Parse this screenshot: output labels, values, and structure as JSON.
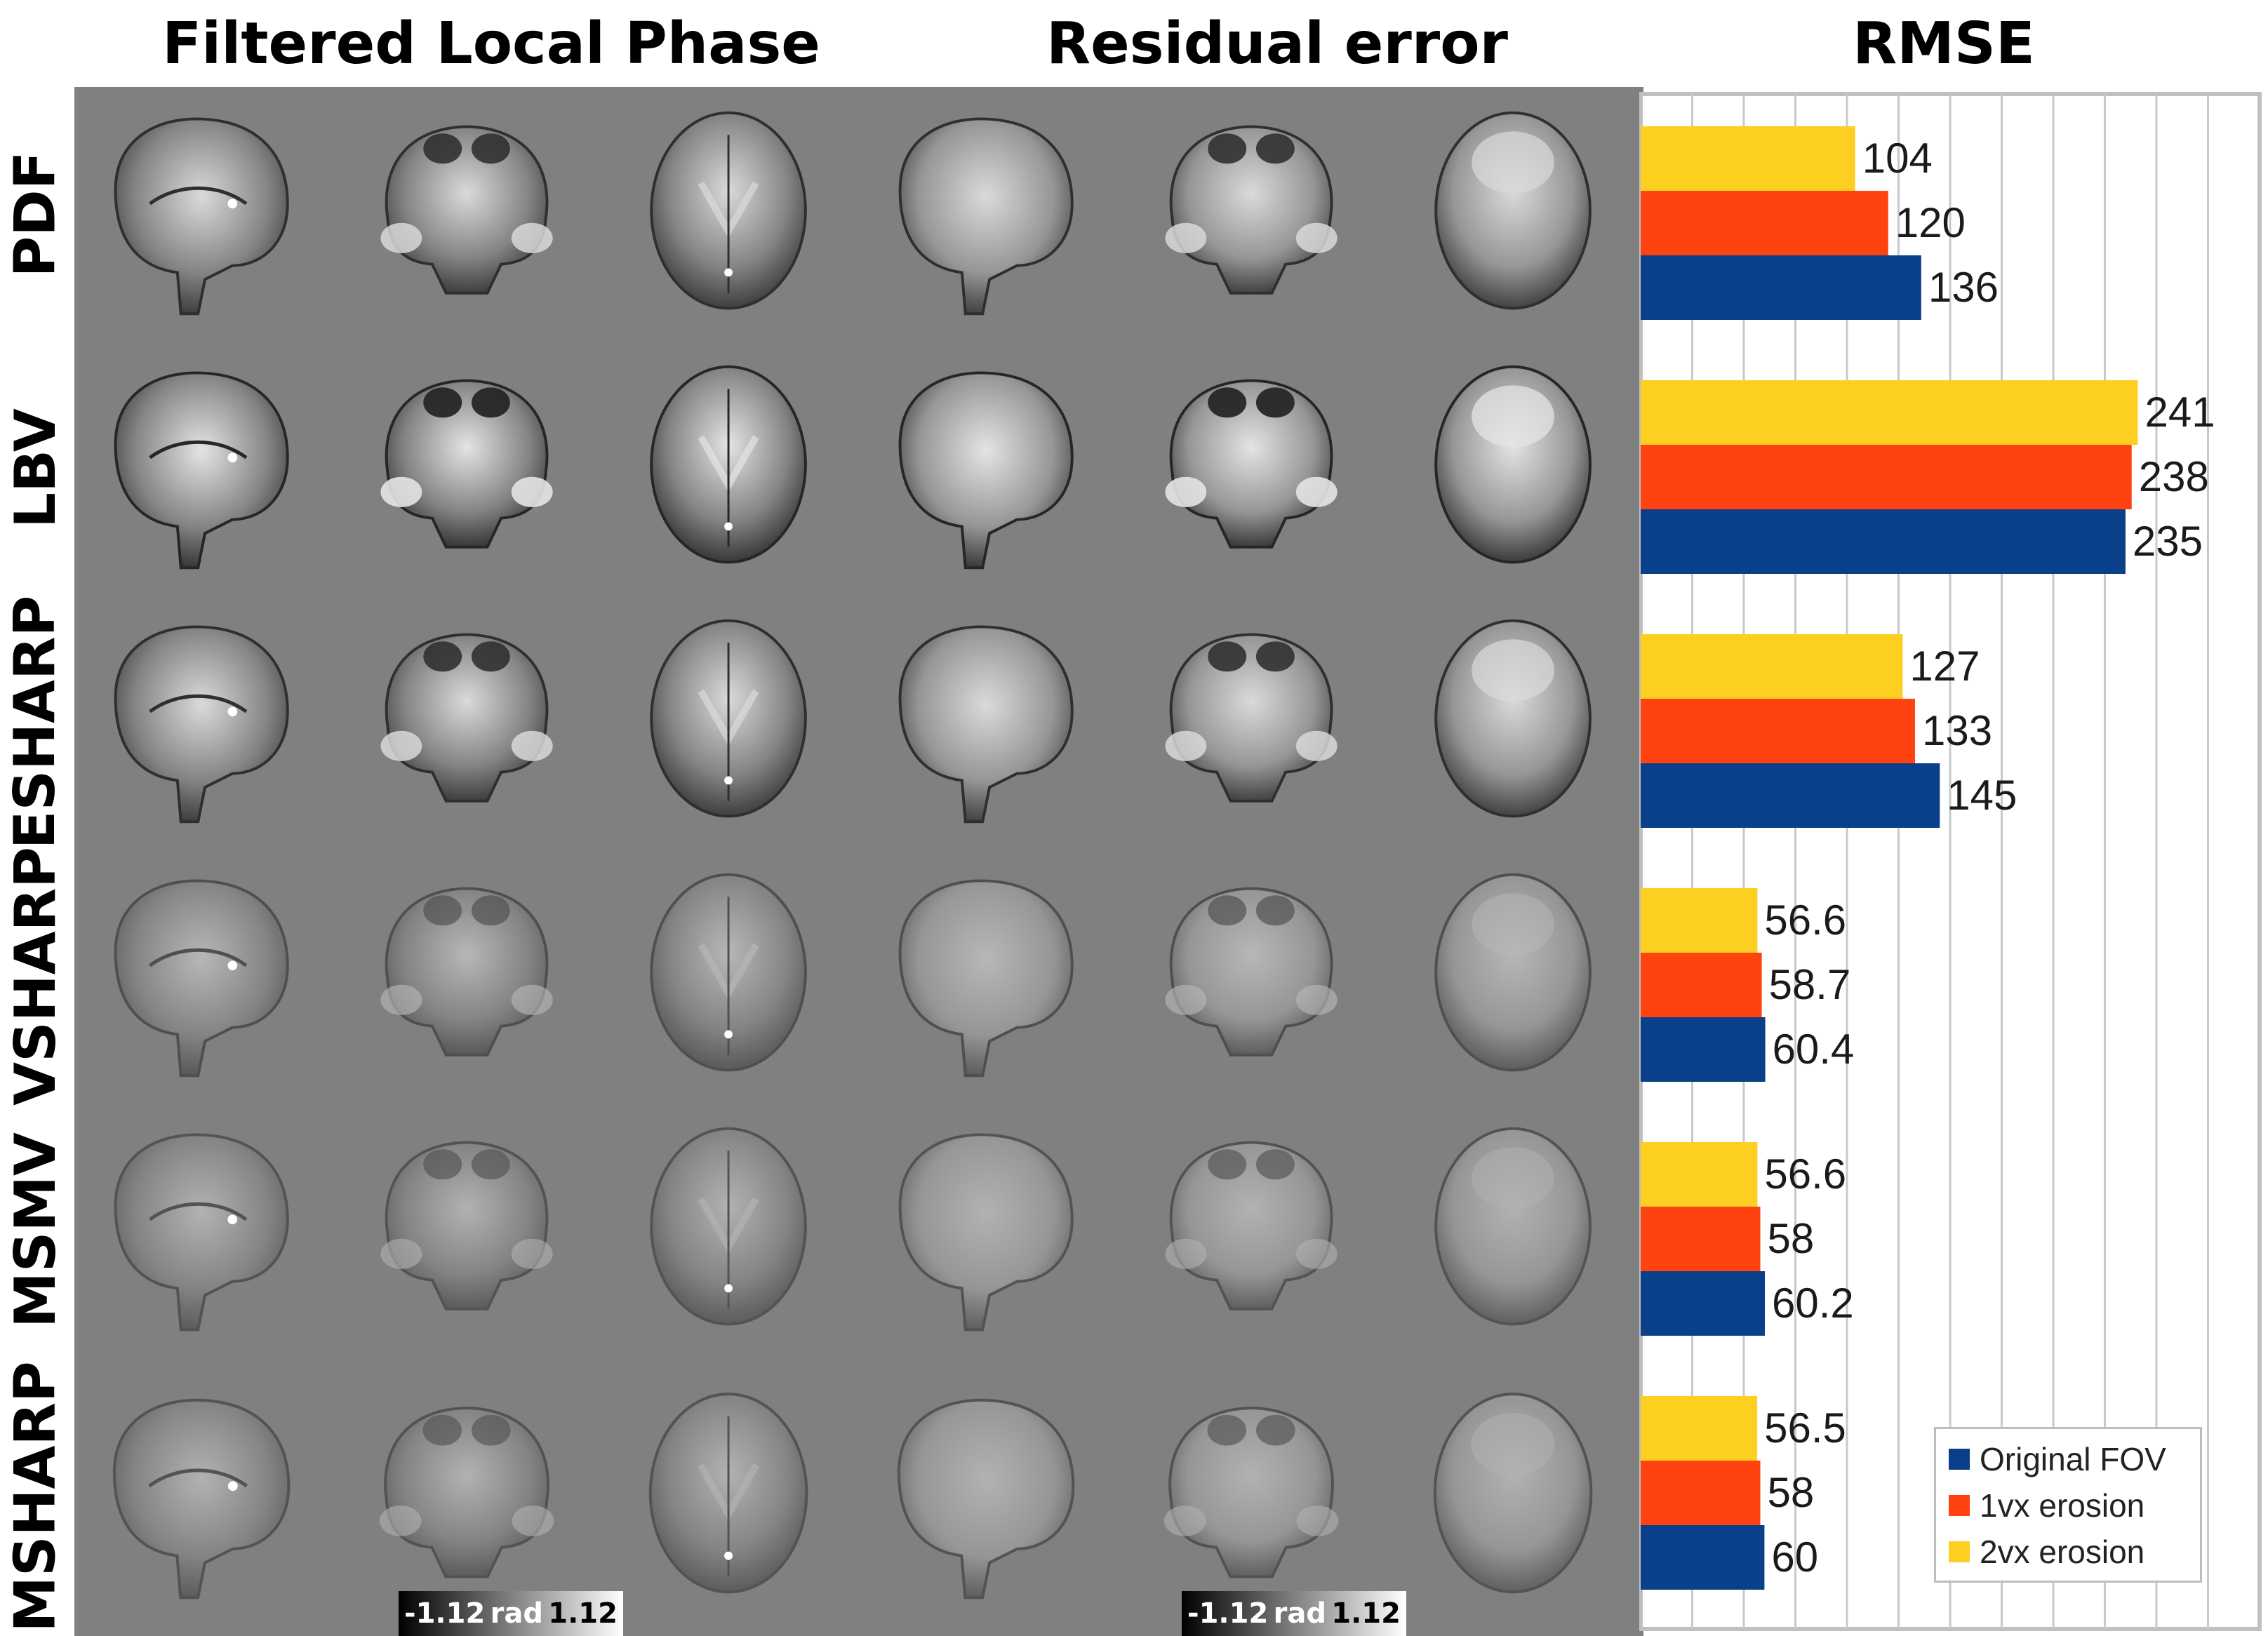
{
  "titles": {
    "left": "Filtered Local Phase",
    "middle": "Residual error",
    "right": "RMSE"
  },
  "rows": [
    "PDF",
    "LBV",
    "ESHARP",
    "VSHARP",
    "MSMV",
    "MSHARP"
  ],
  "colorbar": {
    "min_label": "-1.12",
    "unit_label": "rad",
    "max_label": "1.12"
  },
  "colors": {
    "original_fov": "#0a3f8a",
    "erosion_1vx": "#ff4310",
    "erosion_2vx": "#fdcf21",
    "panel_gray": "#808080"
  },
  "legend": [
    {
      "label": "Original FOV",
      "color": "#0a3f8a"
    },
    {
      "label": "1vx erosion",
      "color": "#ff4310"
    },
    {
      "label": "2vx erosion",
      "color": "#fdcf21"
    }
  ],
  "chart_data": {
    "type": "bar",
    "orientation": "horizontal",
    "title": "RMSE",
    "categories": [
      "PDF",
      "LBV",
      "ESHARP",
      "VSHARP",
      "MSMV",
      "MSHARP"
    ],
    "series": [
      {
        "name": "2vx erosion",
        "values": [
          104,
          241,
          127,
          56.6,
          56.6,
          56.5
        ],
        "labels": [
          "104",
          "241",
          "127",
          "56.6",
          "56.6",
          "56.5"
        ]
      },
      {
        "name": "1vx erosion",
        "values": [
          120,
          238,
          133,
          58.7,
          58,
          58
        ],
        "labels": [
          "120",
          "238",
          "133",
          "58.7",
          "58",
          "58"
        ]
      },
      {
        "name": "Original FOV",
        "values": [
          136,
          235,
          145,
          60.4,
          60.2,
          60
        ],
        "labels": [
          "136",
          "235",
          "145",
          "60.4",
          "60.2",
          "60"
        ]
      }
    ],
    "xlim": [
      0,
      300
    ],
    "grid": true,
    "legend_position": "bottom-right"
  }
}
